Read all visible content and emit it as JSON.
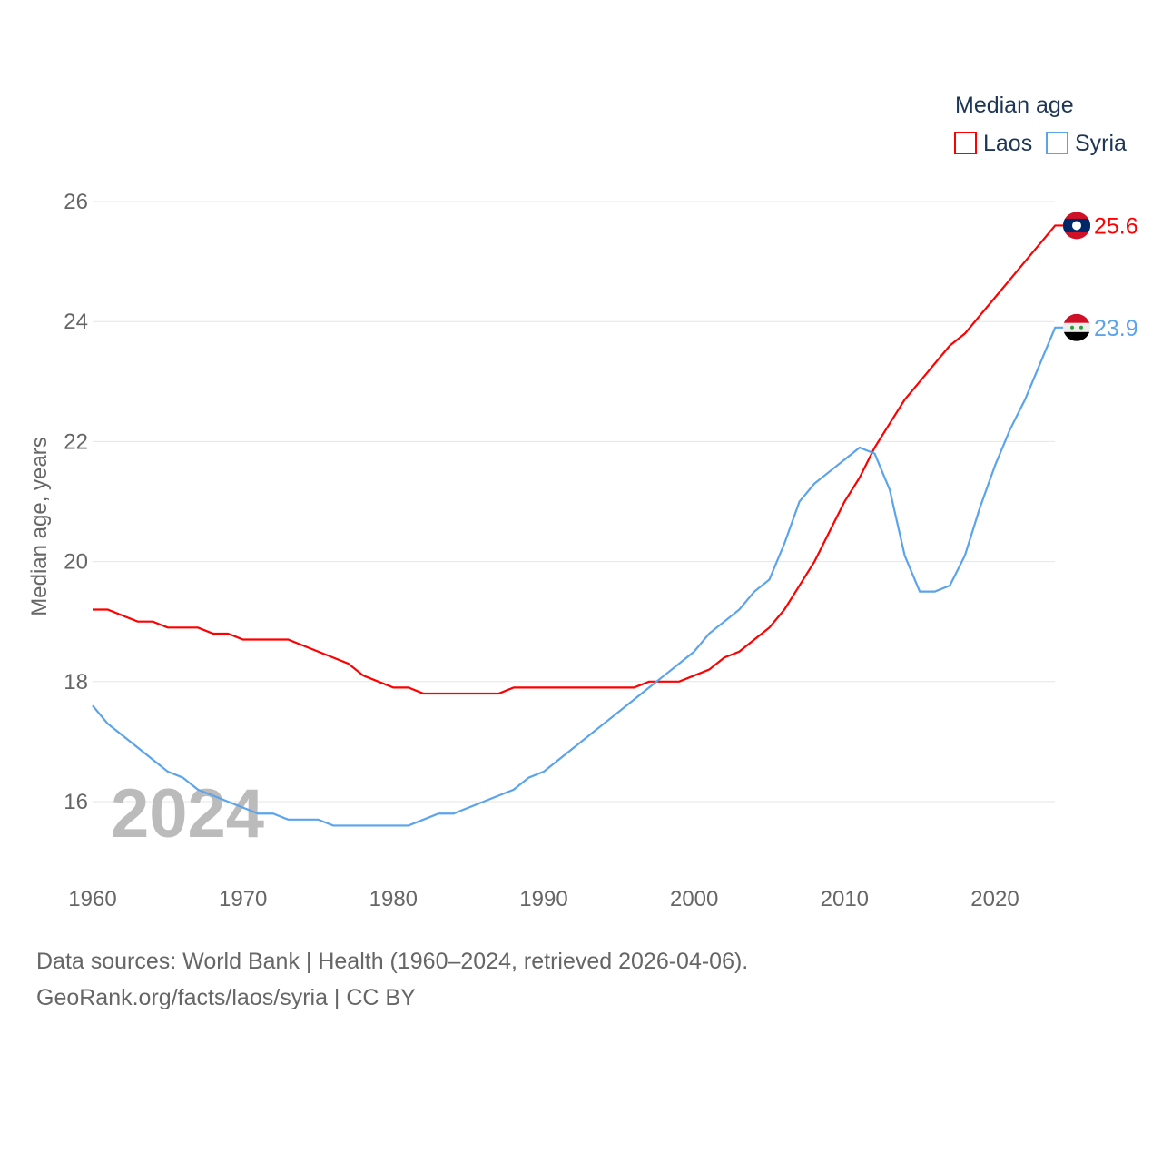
{
  "chart_data": {
    "type": "line",
    "title": "",
    "legend_title": "Median age",
    "legend_placement": "top-right",
    "ylabel": "Median age, years",
    "xlabel": "",
    "xlim": [
      1960,
      2024
    ],
    "ylim": [
      15,
      27
    ],
    "yticks": [
      16,
      18,
      20,
      22,
      24,
      26
    ],
    "xticks": [
      1960,
      1970,
      1980,
      1990,
      2000,
      2010,
      2020
    ],
    "year_watermark": "2024",
    "grid": true,
    "x": [
      1960,
      1961,
      1962,
      1963,
      1964,
      1965,
      1966,
      1967,
      1968,
      1969,
      1970,
      1971,
      1972,
      1973,
      1974,
      1975,
      1976,
      1977,
      1978,
      1979,
      1980,
      1981,
      1982,
      1983,
      1984,
      1985,
      1986,
      1987,
      1988,
      1989,
      1990,
      1991,
      1992,
      1993,
      1994,
      1995,
      1996,
      1997,
      1998,
      1999,
      2000,
      2001,
      2002,
      2003,
      2004,
      2005,
      2006,
      2007,
      2008,
      2009,
      2010,
      2011,
      2012,
      2013,
      2014,
      2015,
      2016,
      2017,
      2018,
      2019,
      2020,
      2021,
      2022,
      2023,
      2024
    ],
    "series": [
      {
        "name": "Laos",
        "color": "#ff0000",
        "end_label": "25.6",
        "values": [
          19.2,
          19.2,
          19.1,
          19.0,
          19.0,
          18.9,
          18.9,
          18.9,
          18.8,
          18.8,
          18.7,
          18.7,
          18.7,
          18.7,
          18.6,
          18.5,
          18.4,
          18.3,
          18.1,
          18.0,
          17.9,
          17.9,
          17.8,
          17.8,
          17.8,
          17.8,
          17.8,
          17.8,
          17.9,
          17.9,
          17.9,
          17.9,
          17.9,
          17.9,
          17.9,
          17.9,
          17.9,
          18.0,
          18.0,
          18.0,
          18.1,
          18.2,
          18.4,
          18.5,
          18.7,
          18.9,
          19.2,
          19.6,
          20.0,
          20.5,
          21.0,
          21.4,
          21.9,
          22.3,
          22.7,
          23.0,
          23.3,
          23.6,
          23.8,
          24.1,
          24.4,
          24.7,
          25.0,
          25.3,
          25.6
        ]
      },
      {
        "name": "Syria",
        "color": "#5ba4ec",
        "end_label": "23.9",
        "values": [
          17.6,
          17.3,
          17.1,
          16.9,
          16.7,
          16.5,
          16.4,
          16.2,
          16.1,
          16.0,
          15.9,
          15.8,
          15.8,
          15.7,
          15.7,
          15.7,
          15.6,
          15.6,
          15.6,
          15.6,
          15.6,
          15.6,
          15.7,
          15.8,
          15.8,
          15.9,
          16.0,
          16.1,
          16.2,
          16.4,
          16.5,
          16.7,
          16.9,
          17.1,
          17.3,
          17.5,
          17.7,
          17.9,
          18.1,
          18.3,
          18.5,
          18.8,
          19.0,
          19.2,
          19.5,
          19.7,
          20.3,
          21.0,
          21.3,
          21.5,
          21.7,
          21.9,
          21.8,
          21.2,
          20.1,
          19.5,
          19.5,
          19.6,
          20.1,
          20.9,
          21.6,
          22.2,
          22.7,
          23.3,
          23.9
        ]
      }
    ]
  },
  "footer": {
    "line1": "Data sources: World Bank | Health (1960–2024, retrieved 2026-04-06).",
    "line2": "GeoRank.org/facts/laos/syria | CC BY"
  }
}
